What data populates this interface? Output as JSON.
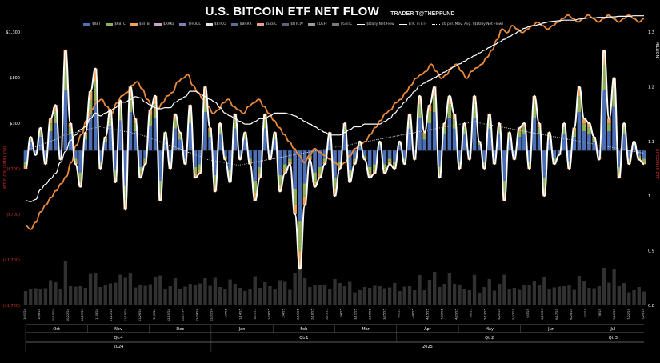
{
  "header": {
    "title": "U.S. BITCOIN ETF NET FLOW",
    "author": "TRADER T@THEPFUND"
  },
  "legend": [
    {
      "label": "$IBIT",
      "kind": "bar",
      "color": "#4d6fb5"
    },
    {
      "label": "$FBTC",
      "kind": "bar",
      "color": "#8fae5a"
    },
    {
      "label": "$BITB",
      "kind": "bar",
      "color": "#f0a25a"
    },
    {
      "label": "$ARKB",
      "kind": "bar",
      "color": "#c9a5c0"
    },
    {
      "label": "$HODL",
      "kind": "bar",
      "color": "#7f81b9"
    },
    {
      "label": "$BTCO",
      "kind": "bar",
      "color": "#e6e6e6"
    },
    {
      "label": "$BRRR",
      "kind": "bar",
      "color": "#5b6e9a"
    },
    {
      "label": "$EZBC",
      "kind": "bar",
      "color": "#e8a089"
    },
    {
      "label": "$BTCW",
      "kind": "bar",
      "color": "#60607a"
    },
    {
      "label": "$DEFI",
      "kind": "bar",
      "color": "#9b9b9b"
    },
    {
      "label": "$GBTC",
      "kind": "bar",
      "color": "#7a7a7a"
    },
    {
      "label": "$Daily Net Flow",
      "kind": "line",
      "color": "#ffffff"
    },
    {
      "label": "BTC in ETF",
      "kind": "line",
      "color": "#ffffff"
    },
    {
      "label": "20 per. Mov. Avg. ($Daily Net Flow)",
      "kind": "dotted",
      "color": "#ffffff"
    }
  ],
  "colors": {
    "background": "#000000",
    "daily_net_flow": "#ffffff",
    "btc_in_etf": "#ffffff",
    "bitcoin_price": "#e8893a",
    "moving_average": "#cccccc",
    "negative_axis_label": "#d9302a",
    "volume_bars": "#5a5a5a"
  },
  "chart_data": {
    "type": "bar",
    "title": "U.S. BITCOIN ETF NET FLOW",
    "ylabel_left": "NET FLOW ($MILLION)",
    "ylabel_right_top": "MILLION",
    "ylabel_right_bottom": "BITCOIN IN ETF",
    "left_ticks": [
      "$1,300",
      "$800",
      "$300",
      "($200)",
      "($700)",
      "($1,200)",
      "($1,700)"
    ],
    "left_tick_values": [
      1300,
      800,
      300,
      -200,
      -700,
      -1200,
      -1700
    ],
    "right_ticks": [
      "1.3",
      "1.2",
      "1.1",
      "1",
      "0.9",
      "0.8"
    ],
    "right_tick_values": [
      1.3,
      1.2,
      1.1,
      1.0,
      0.9,
      0.8
    ],
    "left_range": [
      -1700,
      1300
    ],
    "right_range": [
      0.8,
      1.3
    ],
    "months": [
      "Oct",
      "Nov",
      "Dec",
      "Jan",
      "Feb",
      "Mar",
      "Apr",
      "May",
      "Jun",
      "Jul"
    ],
    "quarters": [
      "Qtr4",
      "Qtr1",
      "Qtr2",
      "Qtr3"
    ],
    "years": [
      "2024",
      "2025"
    ],
    "date_labels": [
      "10/1/24",
      "10/8/24",
      "10/15/24",
      "10/22/24",
      "10/29/24",
      "11/5/24",
      "11/12/24",
      "11/19/24",
      "11/26/24",
      "12/3/24",
      "12/10/24",
      "12/17/24",
      "12/24/24",
      "12/31/24",
      "1/7/25",
      "1/14/25",
      "1/21/25",
      "1/28/25",
      "2/4/25",
      "2/11/25",
      "2/18/25",
      "2/25/25",
      "3/4/25",
      "3/11/25",
      "3/18/25",
      "3/25/25",
      "4/1/25",
      "4/8/25",
      "4/15/25",
      "4/22/25",
      "4/29/25",
      "5/6/25",
      "5/13/25",
      "5/20/25",
      "5/27/25",
      "6/3/25",
      "6/10/25",
      "6/17/25",
      "6/24/25",
      "7/1/25",
      "7/8/25",
      "7/15/25",
      "7/22/25",
      "7/29/25"
    ],
    "series": [
      {
        "name": "$Daily Net Flow",
        "type": "line",
        "values": [
          -200,
          150,
          -50,
          250,
          -150,
          350,
          500,
          -100,
          1100,
          300,
          -150,
          -400,
          200,
          650,
          900,
          -200,
          150,
          450,
          -350,
          550,
          -650,
          700,
          350,
          -300,
          -150,
          450,
          600,
          -550,
          200,
          -200,
          400,
          200,
          -150,
          500,
          -300,
          -250,
          700,
          250,
          -450,
          300,
          -100,
          -350,
          400,
          -100,
          200,
          -150,
          -550,
          -300,
          400,
          -100,
          200,
          -450,
          -250,
          -150,
          -700,
          -1300,
          -600,
          -100,
          -400,
          -300,
          -150,
          200,
          -500,
          -200,
          300,
          -350,
          -150,
          100,
          -100,
          -300,
          -250,
          100,
          -250,
          -150,
          -200,
          100,
          -150,
          400,
          -100,
          600,
          200,
          500,
          700,
          -300,
          300,
          600,
          400,
          -200,
          300,
          -100,
          600,
          100,
          -200,
          400,
          -150,
          300,
          -550,
          200,
          -100,
          250,
          300,
          -200,
          600,
          300,
          -500,
          200,
          -150,
          -50,
          300,
          -200,
          250,
          700,
          350,
          300,
          150,
          -100,
          1100,
          350,
          800,
          -300,
          300,
          -150,
          100,
          -100,
          -150
        ]
      },
      {
        "name": "BTC in ETF",
        "type": "line",
        "values": [
          0.98,
          0.978,
          0.982,
          1.0,
          1.01,
          1.02,
          1.03,
          1.05,
          1.07,
          1.09,
          1.1,
          1.11,
          1.115,
          1.13,
          1.14,
          1.135,
          1.14,
          1.145,
          1.15,
          1.16,
          1.16,
          1.165,
          1.17,
          1.168,
          1.16,
          1.155,
          1.15,
          1.148,
          1.15,
          1.15,
          1.16,
          1.165,
          1.17,
          1.18,
          1.18,
          1.175,
          1.17,
          1.165,
          1.16,
          1.15,
          1.14,
          1.135,
          1.13,
          1.125,
          1.12,
          1.12,
          1.125,
          1.13,
          1.13,
          1.135,
          1.14,
          1.14,
          1.14,
          1.138,
          1.135,
          1.13,
          1.125,
          1.12,
          1.115,
          1.11,
          1.105,
          1.1,
          1.1,
          1.1,
          1.105,
          1.11,
          1.115,
          1.115,
          1.12,
          1.12,
          1.12,
          1.12,
          1.125,
          1.13,
          1.14,
          1.15,
          1.16,
          1.17,
          1.18,
          1.19,
          1.195,
          1.2,
          1.205,
          1.21,
          1.215,
          1.22,
          1.225,
          1.23,
          1.235,
          1.24,
          1.245,
          1.25,
          1.255,
          1.26,
          1.265,
          1.27,
          1.275,
          1.28,
          1.285,
          1.29,
          1.295,
          1.298,
          1.3,
          1.302,
          1.305,
          1.307,
          1.308,
          1.309,
          1.31,
          1.31,
          1.31,
          1.312,
          1.313,
          1.314,
          1.314,
          1.315,
          1.315,
          1.316,
          1.316,
          1.317,
          1.317,
          1.317,
          1.318,
          1.318,
          1.318
        ]
      },
      {
        "name": "Bitcoin Price",
        "type": "line",
        "values": [
          62000,
          61000,
          63000,
          66000,
          68000,
          70000,
          72000,
          74000,
          76000,
          80000,
          85000,
          88000,
          92000,
          95000,
          97000,
          98000,
          96000,
          94000,
          97000,
          99000,
          100000,
          102000,
          103000,
          101000,
          98000,
          96000,
          95000,
          97000,
          99000,
          100000,
          103000,
          104000,
          105000,
          102000,
          100000,
          98000,
          96000,
          94000,
          95000,
          97000,
          98000,
          96000,
          95000,
          94000,
          96000,
          97000,
          98000,
          96000,
          94000,
          92000,
          90000,
          88000,
          86000,
          84000,
          82000,
          80000,
          82000,
          84000,
          83000,
          82000,
          81000,
          80000,
          79000,
          80000,
          82000,
          84000,
          85000,
          86000,
          88000,
          90000,
          92000,
          94000,
          95000,
          97000,
          98000,
          100000,
          102000,
          104000,
          105000,
          106000,
          108000,
          106000,
          104000,
          105000,
          107000,
          108000,
          106000,
          104000,
          106000,
          107000,
          108000,
          110000,
          112000,
          115000,
          118000,
          117000,
          119000,
          118000,
          117000,
          118000,
          119000,
          120000,
          119000,
          118000,
          119000,
          120000,
          121000,
          122000,
          121000,
          120000,
          121000,
          122000,
          121000,
          120000,
          121000,
          122000,
          121000,
          120000,
          121000,
          122000,
          121000,
          120000,
          121000
        ]
      },
      {
        "name": "20 per. Mov. Avg. ($Daily Net Flow)",
        "type": "line",
        "values": [
          0,
          20,
          40,
          60,
          80,
          100,
          120,
          150,
          170,
          180,
          200,
          210,
          220,
          240,
          250,
          260,
          250,
          240,
          230,
          220,
          210,
          200,
          190,
          180,
          160,
          140,
          120,
          100,
          80,
          60,
          40,
          20,
          0,
          -20,
          -40,
          -60,
          -80,
          -100,
          -110,
          -120,
          -130,
          -140,
          -150,
          -160,
          -150,
          -140,
          -130,
          -120,
          -110,
          -100,
          -90,
          -80,
          -70,
          -60,
          -50,
          -40,
          -30,
          -20,
          -10,
          0,
          10,
          20,
          30,
          40,
          50,
          60,
          70,
          80,
          90,
          100,
          110,
          120,
          130,
          140,
          150,
          160,
          170,
          180,
          190,
          200,
          210,
          220,
          230,
          240,
          250,
          260,
          270,
          280,
          290,
          300,
          310,
          320,
          300,
          290,
          280,
          270,
          260,
          250,
          240,
          230,
          220,
          210,
          200,
          190,
          180,
          170,
          160,
          150,
          140,
          130,
          120,
          110,
          100,
          90,
          80,
          70,
          60,
          50,
          40,
          30,
          20,
          10,
          0,
          -10,
          -20,
          -30
        ]
      }
    ],
    "grid": false,
    "legend_position": "top"
  }
}
